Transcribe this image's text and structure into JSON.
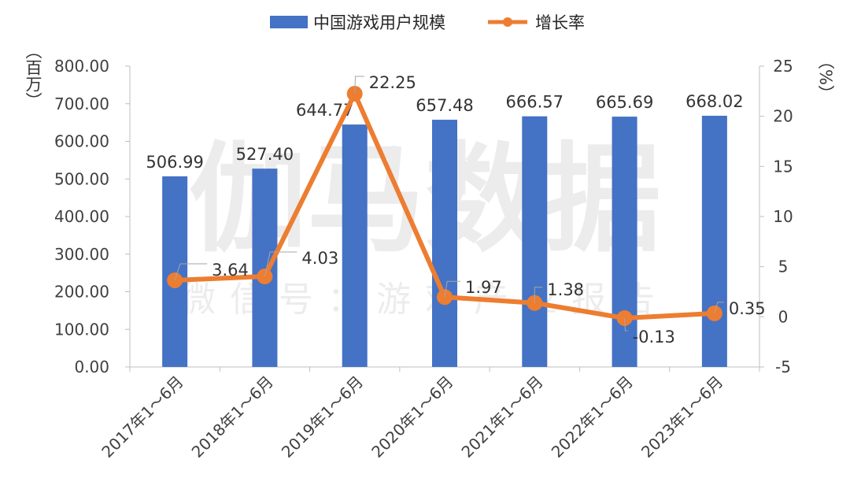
{
  "watermark": {
    "main": "伽马数据",
    "sub": "微信号：游戏产业报告"
  },
  "units": {
    "left": "（百万）",
    "right": "（%）"
  },
  "colors": {
    "bar": "#4472C4",
    "line": "#ED7D31",
    "axis": "#BFBFBF",
    "leader": "#A6A6A6"
  },
  "chart_data": {
    "type": "bar",
    "title": "",
    "categories": [
      "2017年1～6月",
      "2018年1～6月",
      "2019年1～6月",
      "2020年1～6月",
      "2021年1～6月",
      "2022年1～6月",
      "2023年1～6月"
    ],
    "series": [
      {
        "name": "中国游戏用户规模",
        "type": "bar",
        "axis": "left",
        "values": [
          506.99,
          527.4,
          644.77,
          657.48,
          666.57,
          665.69,
          668.02
        ],
        "labels": [
          "506.99",
          "527.40",
          "644.77",
          "657.48",
          "666.57",
          "665.69",
          "668.02"
        ]
      },
      {
        "name": "增长率",
        "type": "line",
        "axis": "right",
        "values": [
          3.64,
          4.03,
          22.25,
          1.97,
          1.38,
          -0.13,
          0.35
        ],
        "labels": [
          "3.64",
          "4.03",
          "22.25",
          "1.97",
          "1.38",
          "-0.13",
          "0.35"
        ]
      }
    ],
    "y_left": {
      "min": 0,
      "max": 800,
      "step": 100,
      "ticks": [
        "0.00",
        "100.00",
        "200.00",
        "300.00",
        "400.00",
        "500.00",
        "600.00",
        "700.00",
        "800.00"
      ]
    },
    "y_right": {
      "min": -5,
      "max": 25,
      "step": 5,
      "ticks": [
        "-5",
        "0",
        "5",
        "10",
        "15",
        "20",
        "25"
      ]
    },
    "legend": "top-center",
    "grid": false
  }
}
